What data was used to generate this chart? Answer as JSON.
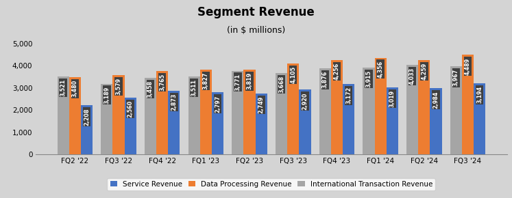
{
  "title": "Segment Revenue",
  "subtitle": "(in $ millions)",
  "categories": [
    "FQ2 '22",
    "FQ3 '22",
    "FQ4 '22",
    "FQ1 '23",
    "FQ2 '23",
    "FQ3 '23",
    "FQ4 '23",
    "FQ1 '24",
    "FQ2 '24",
    "FQ3 '24"
  ],
  "service_revenue": [
    2208,
    2560,
    2873,
    2797,
    2749,
    2920,
    3172,
    3019,
    2984,
    3194
  ],
  "data_processing": [
    3480,
    3579,
    3765,
    3827,
    3819,
    4105,
    4256,
    4356,
    4259,
    4489
  ],
  "intl_transaction": [
    3521,
    3189,
    3458,
    3511,
    3771,
    3668,
    3876,
    3915,
    4033,
    3967
  ],
  "service_color": "#4472C4",
  "data_processing_color": "#ED7D31",
  "intl_transaction_color": "#A5A5A5",
  "bar_width": 0.27,
  "ylim": [
    0,
    5000
  ],
  "yticks": [
    0,
    1000,
    2000,
    3000,
    4000,
    5000
  ],
  "background_color": "#D4D4D4",
  "title_fontsize": 12,
  "subtitle_fontsize": 9,
  "label_fontsize": 5.8,
  "legend_fontsize": 7.5,
  "tick_fontsize": 7.5,
  "label_box_color": "#404040",
  "label_text_color": "white"
}
